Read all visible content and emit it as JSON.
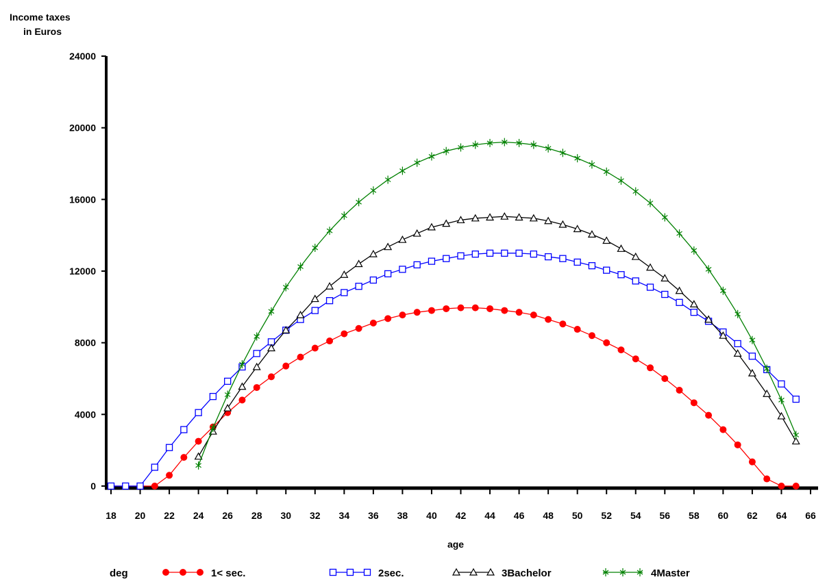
{
  "chart_data": {
    "type": "line",
    "ylabel_line1": "Income taxes",
    "ylabel_line2": "in Euros",
    "xlabel": "age",
    "legend_title": "deg",
    "legend_position": "bottom",
    "xlim": [
      18,
      66
    ],
    "ylim": [
      0,
      24000
    ],
    "x_ticks": [
      18,
      20,
      22,
      24,
      26,
      28,
      30,
      32,
      34,
      36,
      38,
      40,
      42,
      44,
      46,
      48,
      50,
      52,
      54,
      56,
      58,
      60,
      62,
      64,
      66
    ],
    "y_ticks": [
      0,
      4000,
      8000,
      12000,
      16000,
      20000,
      24000
    ],
    "grid": false,
    "x": [
      18,
      19,
      20,
      21,
      22,
      23,
      24,
      25,
      26,
      27,
      28,
      29,
      30,
      31,
      32,
      33,
      34,
      35,
      36,
      37,
      38,
      39,
      40,
      41,
      42,
      43,
      44,
      45,
      46,
      47,
      48,
      49,
      50,
      51,
      52,
      53,
      54,
      55,
      56,
      57,
      58,
      59,
      60,
      61,
      62,
      63,
      64,
      65
    ],
    "series": [
      {
        "name": "1< sec.",
        "color": "#ff0000",
        "marker": "filled-circle",
        "values": [
          0,
          0,
          0,
          0,
          600,
          1600,
          2500,
          3300,
          4100,
          4800,
          5500,
          6100,
          6700,
          7200,
          7700,
          8100,
          8500,
          8800,
          9100,
          9350,
          9550,
          9700,
          9800,
          9900,
          9950,
          9950,
          9900,
          9800,
          9700,
          9550,
          9300,
          9050,
          8750,
          8400,
          8000,
          7600,
          7100,
          6600,
          6000,
          5350,
          4650,
          3950,
          3150,
          2300,
          1350,
          400,
          0,
          0
        ]
      },
      {
        "name": "2sec.",
        "color": "#0000ff",
        "marker": "open-square",
        "values": [
          0,
          0,
          0,
          1050,
          2150,
          3150,
          4100,
          5000,
          5850,
          6650,
          7400,
          8050,
          8700,
          9300,
          9800,
          10350,
          10800,
          11150,
          11500,
          11850,
          12100,
          12350,
          12550,
          12700,
          12850,
          12950,
          13000,
          13000,
          13000,
          12950,
          12800,
          12700,
          12500,
          12300,
          12050,
          11800,
          11450,
          11100,
          10700,
          10250,
          9700,
          9200,
          8600,
          7950,
          7250,
          6500,
          5700,
          4850
        ]
      },
      {
        "name": "3Bachelor",
        "color": "#000000",
        "marker": "open-triangle",
        "values": [
          0,
          0,
          0,
          0,
          0,
          0,
          1650,
          3050,
          4350,
          5550,
          6650,
          7700,
          8700,
          9550,
          10450,
          11150,
          11800,
          12400,
          12950,
          13350,
          13750,
          14100,
          14450,
          14650,
          14850,
          14950,
          15000,
          15050,
          15000,
          14950,
          14800,
          14600,
          14350,
          14050,
          13700,
          13250,
          12800,
          12200,
          11600,
          10900,
          10150,
          9300,
          8400,
          7400,
          6300,
          5150,
          3900,
          2500
        ]
      },
      {
        "name": "4Master",
        "color": "#008000",
        "marker": "asterisk",
        "values": [
          0,
          0,
          0,
          0,
          0,
          0,
          1150,
          3250,
          5100,
          6800,
          8350,
          9750,
          11100,
          12250,
          13300,
          14250,
          15100,
          15850,
          16500,
          17100,
          17600,
          18050,
          18400,
          18700,
          18900,
          19050,
          19150,
          19200,
          19150,
          19050,
          18850,
          18600,
          18300,
          17950,
          17550,
          17050,
          16450,
          15800,
          15000,
          14100,
          13150,
          12100,
          10900,
          9600,
          8150,
          6550,
          4800,
          2850
        ]
      }
    ]
  }
}
